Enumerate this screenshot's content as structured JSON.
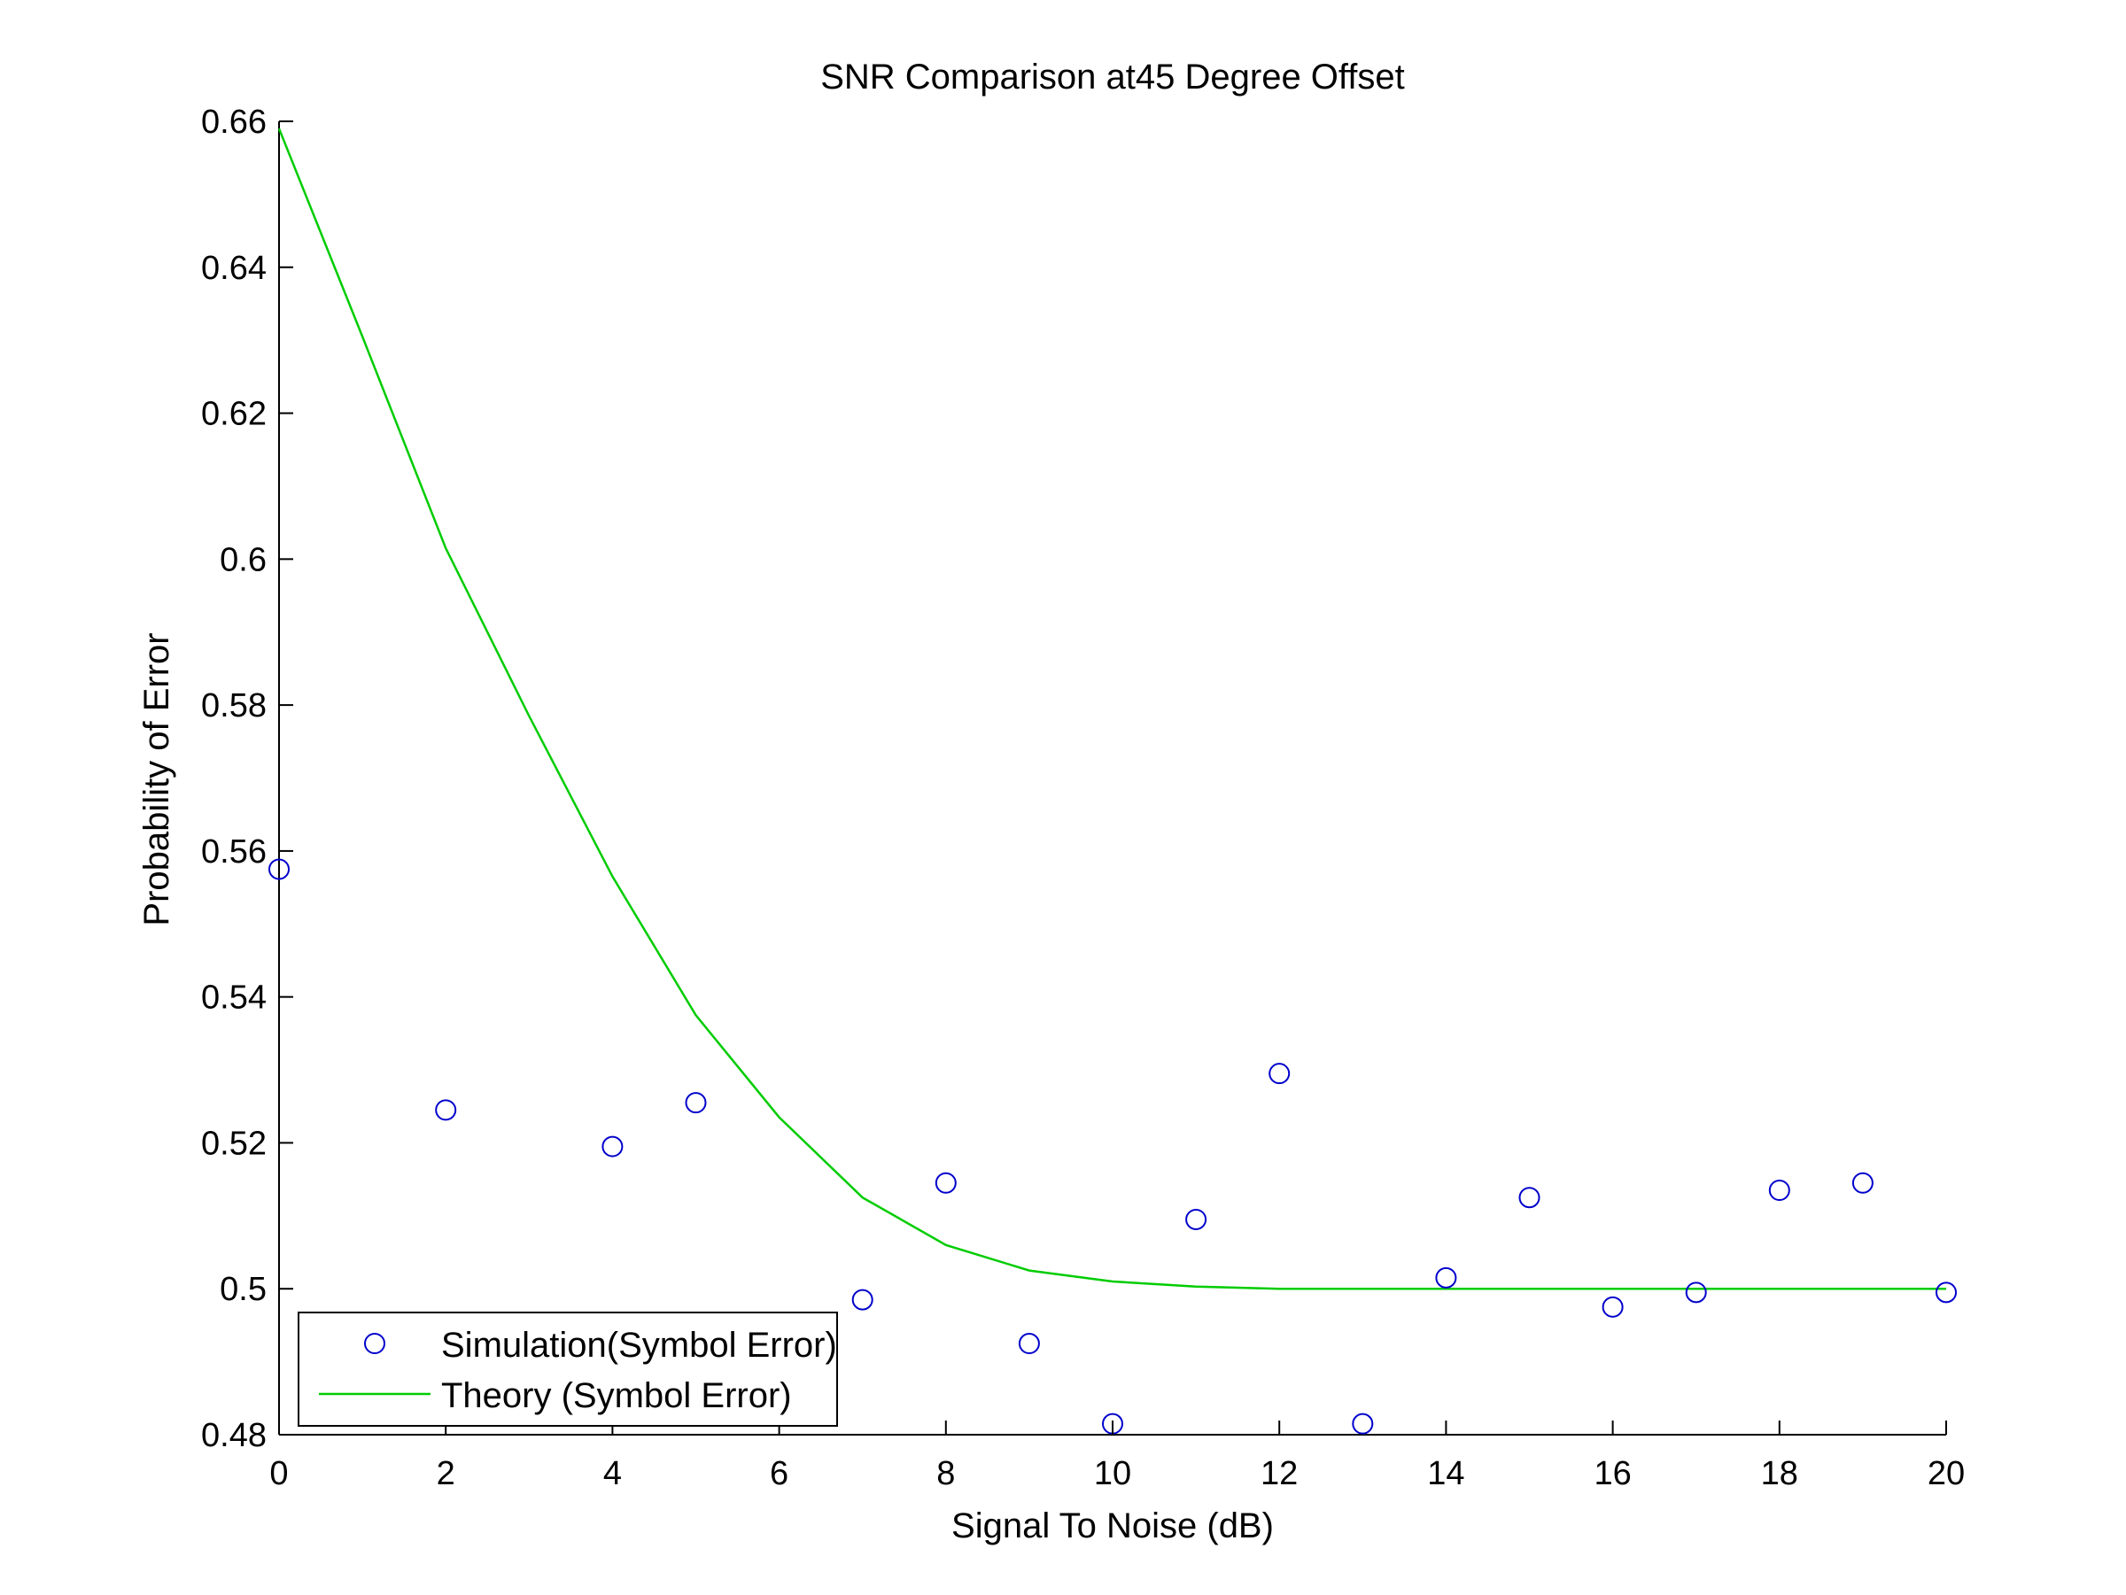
{
  "chart_data": {
    "type": "scatter",
    "title": "SNR Comparison at45 Degree Offset",
    "xlabel": "Signal To Noise (dB)",
    "ylabel": "Probability of Error",
    "xlim": [
      0,
      20
    ],
    "ylim": [
      0.48,
      0.66
    ],
    "xticks": [
      0,
      2,
      4,
      6,
      8,
      10,
      12,
      14,
      16,
      18,
      20
    ],
    "xtick_labels": [
      "0",
      "2",
      "4",
      "6",
      "8",
      "10",
      "12",
      "14",
      "16",
      "18",
      "20"
    ],
    "yticks": [
      0.48,
      0.5,
      0.52,
      0.54,
      0.56,
      0.58,
      0.6,
      0.62,
      0.64,
      0.66
    ],
    "ytick_labels": [
      "0.48",
      "0.5",
      "0.52",
      "0.54",
      "0.56",
      "0.58",
      "0.6",
      "0.62",
      "0.64",
      "0.66"
    ],
    "grid": false,
    "legend_position": "bottom-left",
    "series": [
      {
        "name": "Simulation(Symbol Error)",
        "kind": "markers",
        "marker": "circle",
        "color": "#0000cc",
        "x": [
          0,
          2,
          4,
          5,
          7,
          8,
          9,
          10,
          11,
          12,
          13,
          14,
          15,
          16,
          17,
          18,
          19,
          20
        ],
        "y": [
          0.5575,
          0.5245,
          0.5195,
          0.5255,
          0.4985,
          0.5145,
          0.4925,
          0.4815,
          0.5095,
          0.5295,
          0.4815,
          0.5015,
          0.5125,
          0.4975,
          0.4995,
          0.5135,
          0.5145,
          0.4995
        ]
      },
      {
        "name": "Theory (Symbol Error)",
        "kind": "line",
        "color": "#00cc00",
        "x": [
          0,
          1,
          2,
          3,
          4,
          5,
          6,
          7,
          8,
          9,
          10,
          11,
          12,
          13,
          14,
          15,
          16,
          17,
          18,
          19,
          20
        ],
        "y": [
          0.659,
          0.6305,
          0.6015,
          0.5785,
          0.5565,
          0.5375,
          0.5235,
          0.5125,
          0.506,
          0.5025,
          0.501,
          0.5003,
          0.5,
          0.5,
          0.5,
          0.5,
          0.5,
          0.5,
          0.5,
          0.5,
          0.5
        ]
      }
    ]
  }
}
